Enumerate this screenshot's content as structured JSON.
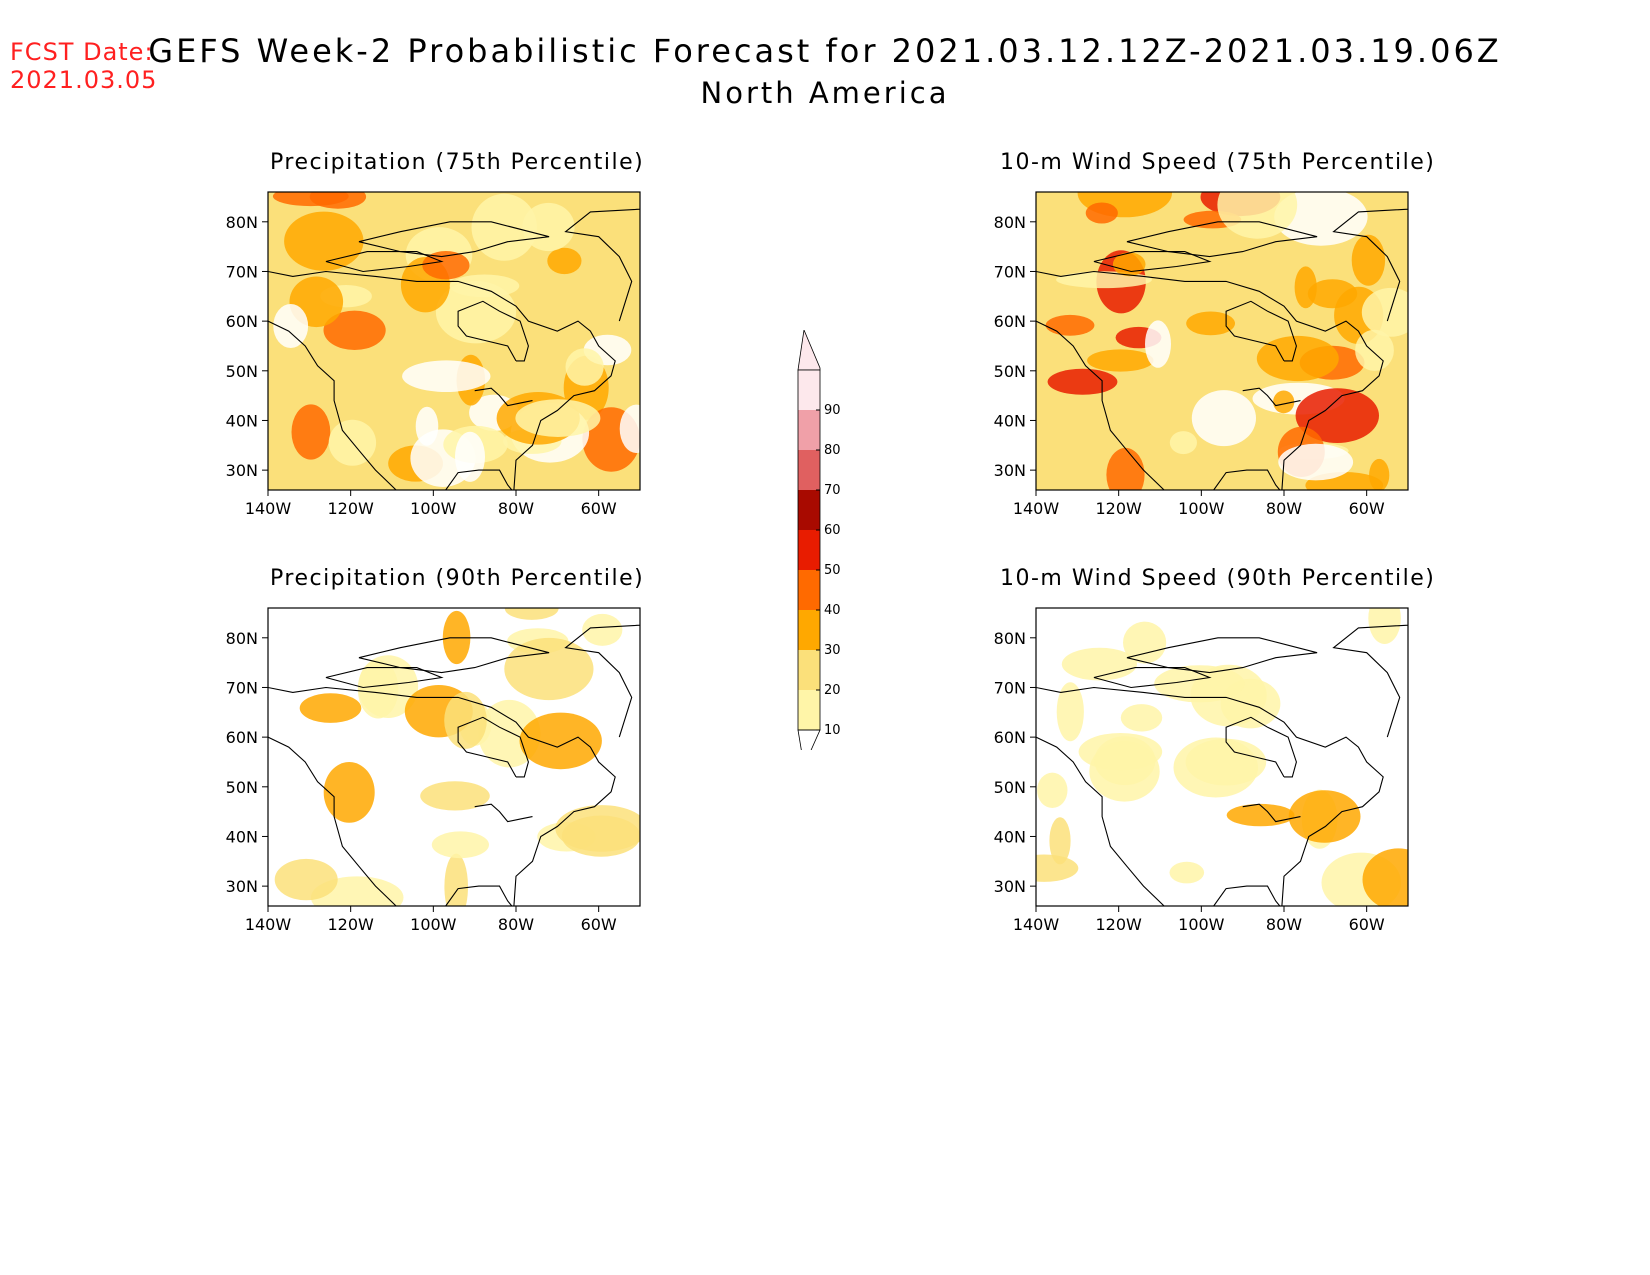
{
  "header": {
    "fcst_label": "FCST Date:",
    "fcst_date": "2021.03.05",
    "title": "GEFS Week-2 Probabilistic Forecast for 2021.03.12.12Z-2021.03.19.06Z",
    "subtitle": "North America"
  },
  "axes": {
    "lat_labels": [
      "80N",
      "70N",
      "60N",
      "50N",
      "40N",
      "30N"
    ],
    "lon_labels": [
      "140W",
      "120W",
      "100W",
      "80W",
      "60W"
    ]
  },
  "panels": [
    {
      "id": "precip75",
      "title": "Precipitation (75th Percentile)",
      "level": "high"
    },
    {
      "id": "wind75",
      "title": "10-m Wind Speed (75th Percentile)",
      "level": "high"
    },
    {
      "id": "precip90",
      "title": "Precipitation (90th Percentile)",
      "level": "low"
    },
    {
      "id": "wind90",
      "title": "10-m Wind Speed (90th Percentile)",
      "level": "low"
    }
  ],
  "colorbar": {
    "levels": [
      "10",
      "20",
      "30",
      "40",
      "50",
      "60",
      "70",
      "80",
      "90"
    ],
    "colors": [
      "#fff5a8",
      "#fbe07a",
      "#ffa800",
      "#ff6a00",
      "#e81c00",
      "#a80a00",
      "#e06060",
      "#f0a0a8",
      "#fde8ec"
    ]
  }
}
